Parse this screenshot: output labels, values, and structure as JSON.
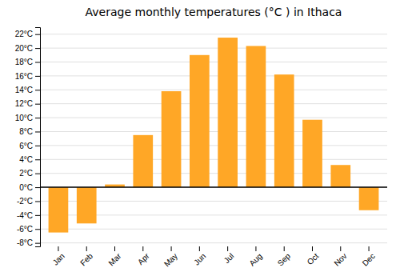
{
  "chart_data": {
    "type": "bar",
    "title": "Average monthly temperatures (°C ) in Ithaca",
    "categories": [
      "Jan",
      "Feb",
      "Mar",
      "Apr",
      "May",
      "Jun",
      "Jul",
      "Aug",
      "Sep",
      "Oct",
      "Nov",
      "Dec"
    ],
    "values": [
      -6.5,
      -5.2,
      0.4,
      7.5,
      13.8,
      19.0,
      21.5,
      20.3,
      16.2,
      9.7,
      3.2,
      -3.3
    ],
    "color": "#FFA726",
    "ylim": [
      -8.5,
      23
    ],
    "yticks": [
      {
        "value": -8,
        "label": "-8°C"
      },
      {
        "value": -6,
        "label": "-6°C"
      },
      {
        "value": -4,
        "label": "-4°C"
      },
      {
        "value": -2,
        "label": "-2°C"
      },
      {
        "value": 0,
        "label": "0°C"
      },
      {
        "value": 2,
        "label": "2°C"
      },
      {
        "value": 4,
        "label": "4°C"
      },
      {
        "value": 6,
        "label": "6°C"
      },
      {
        "value": 8,
        "label": "8°C"
      },
      {
        "value": 10,
        "label": "10°C"
      },
      {
        "value": 12,
        "label": "12°C"
      },
      {
        "value": 14,
        "label": "14°C"
      },
      {
        "value": 16,
        "label": "16°C"
      },
      {
        "value": 18,
        "label": "18°C"
      },
      {
        "value": 20,
        "label": "20°C"
      },
      {
        "value": 22,
        "label": "22°C"
      }
    ],
    "grid": true
  }
}
